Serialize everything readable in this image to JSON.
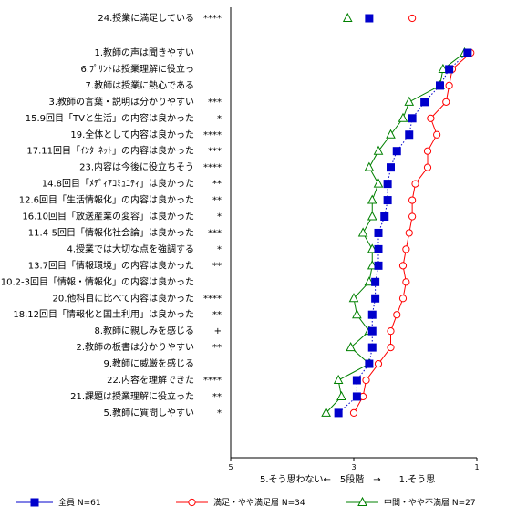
{
  "chart_data": {
    "type": "line",
    "orientation": "horizontal",
    "x_axis": {
      "min": 1,
      "max": 5,
      "reversed": true,
      "ticks": [
        "5",
        "3",
        "1"
      ],
      "label": "5.そう思わない←　5段階　→　　1.そう思"
    },
    "categories": [
      {
        "label": "24.授業に満足している",
        "mark": "****",
        "separate": true
      },
      {
        "label": "1.教師の声は聞きやすい",
        "mark": ""
      },
      {
        "label": "6.ﾌﾟﾘﾝﾄは授業理解に役立っ",
        "mark": ""
      },
      {
        "label": "7.教師は授業に熱心である",
        "mark": ""
      },
      {
        "label": "3.教師の言葉・説明は分かりやすい",
        "mark": "***"
      },
      {
        "label": "15.9回目「TVと生活」の内容は良かった",
        "mark": "*"
      },
      {
        "label": "19.全体として内容は良かった",
        "mark": "****"
      },
      {
        "label": "17.11回目「ｲﾝﾀｰﾈｯﾄ」の内容は良かった",
        "mark": "***"
      },
      {
        "label": "23.内容は今後に役立ちそう",
        "mark": "****"
      },
      {
        "label": "14.8回目「ﾒﾃﾞｨｱｺﾐｭﾆﾃｨ」は良かった",
        "mark": "**"
      },
      {
        "label": "12.6回目「生活情報化」の内容は良かった",
        "mark": "**"
      },
      {
        "label": "16.10回目「放送産業の変容」は良かった",
        "mark": "*"
      },
      {
        "label": "11.4-5回目「情報化社会論」は良かった",
        "mark": "***"
      },
      {
        "label": "4.授業では大切な点を強調する",
        "mark": "*"
      },
      {
        "label": "13.7回目「情報環境」の内容は良かった",
        "mark": "**"
      },
      {
        "label": "10.2-3回目「情報・情報化」の内容は良かった",
        "mark": ""
      },
      {
        "label": "20.他科目に比べて内容は良かった",
        "mark": "****"
      },
      {
        "label": "18.12回目「情報化と国土利用」は良かった",
        "mark": "**"
      },
      {
        "label": "8.教師に親しみを感じる",
        "mark": "+"
      },
      {
        "label": "2.教師の板書は分かりやすい",
        "mark": "**"
      },
      {
        "label": "9.教師に威厳を感じる",
        "mark": ""
      },
      {
        "label": "22.内容を理解できた",
        "mark": "****"
      },
      {
        "label": "21.課題は授業理解に役立った",
        "mark": "**"
      },
      {
        "label": "5.教師に質問しやすい",
        "mark": "*"
      }
    ],
    "series": [
      {
        "name": "全員 N=61",
        "color": "#0000cc",
        "marker": "square",
        "line": "dotted",
        "values": [
          2.75,
          1.15,
          1.45,
          1.6,
          1.85,
          2.05,
          2.1,
          2.3,
          2.4,
          2.45,
          2.45,
          2.5,
          2.6,
          2.6,
          2.6,
          2.65,
          2.65,
          2.7,
          2.7,
          2.7,
          2.75,
          2.95,
          2.95,
          3.25
        ]
      },
      {
        "name": "満足・やや満足層 N=34",
        "color": "#ff0000",
        "marker": "circle",
        "line": "solid",
        "values": [
          2.05,
          1.1,
          1.4,
          1.45,
          1.5,
          1.75,
          1.65,
          1.8,
          1.8,
          2.0,
          2.05,
          2.05,
          2.1,
          2.15,
          2.2,
          2.15,
          2.2,
          2.3,
          2.4,
          2.4,
          2.6,
          2.8,
          2.85,
          3.0
        ]
      },
      {
        "name": "中間・やや不満層 N=27",
        "color": "#008000",
        "marker": "triangle",
        "line": "solid",
        "values": [
          3.1,
          1.2,
          1.55,
          1.6,
          2.1,
          2.2,
          2.4,
          2.6,
          2.75,
          2.6,
          2.7,
          2.7,
          2.85,
          2.7,
          2.7,
          2.75,
          3.0,
          2.95,
          2.75,
          3.05,
          2.75,
          3.25,
          3.2,
          3.45
        ]
      }
    ],
    "legend_position": "bottom",
    "grid": false
  }
}
